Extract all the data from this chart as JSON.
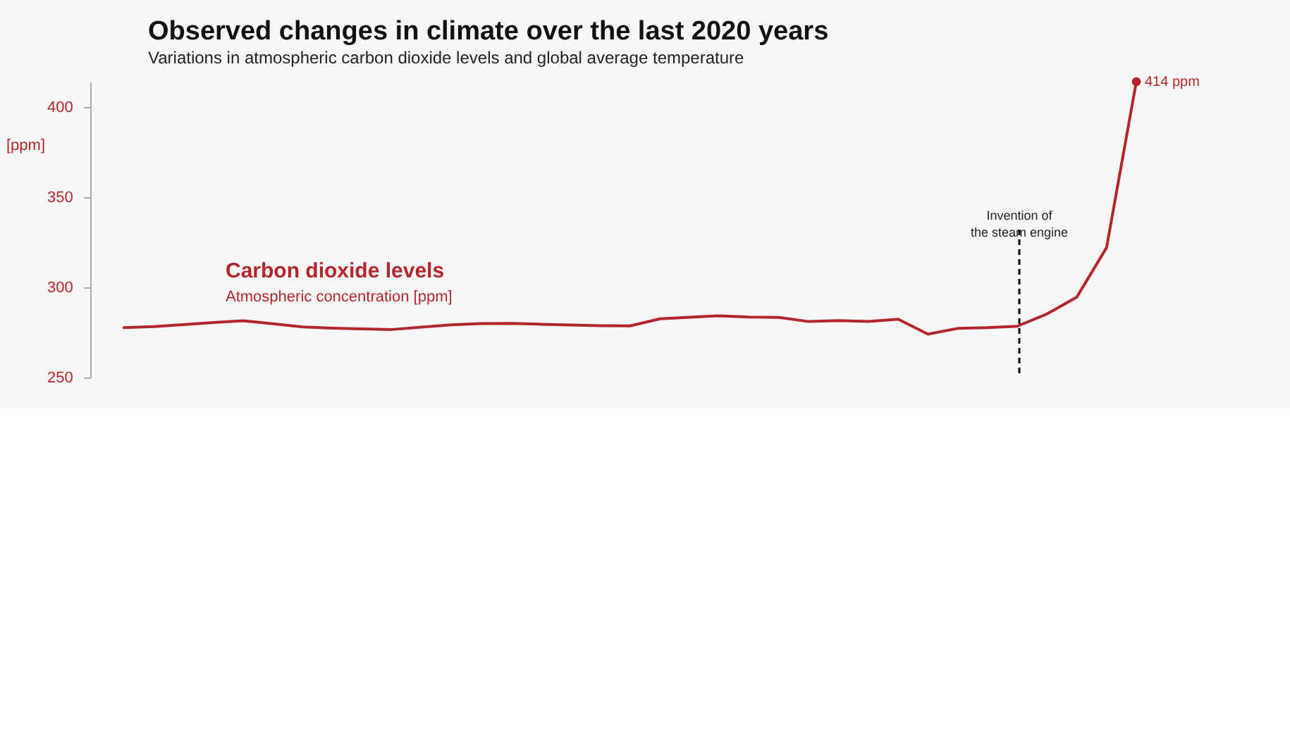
{
  "chart_data": {
    "type": "line",
    "title": "Observed changes in climate over the last 2020 years",
    "subtitle": "Variations in atmospheric carbon dioxide levels and global average temperature",
    "ylabel": "[ppm]",
    "categories": [
      null,
      null,
      null,
      null,
      null,
      null,
      null,
      null,
      null,
      null,
      null,
      null,
      null,
      null,
      null,
      null,
      null,
      null,
      null,
      null,
      null,
      null,
      null,
      null,
      null,
      null,
      null,
      null,
      null,
      null,
      null,
      null,
      null,
      null,
      null
    ],
    "series": [
      {
        "name": "Carbon dioxide levels",
        "color": "#b5262c",
        "values": [
          277.6,
          278.2,
          279.3,
          280.5,
          281.4,
          279.8,
          278,
          277.3,
          276.9,
          276.6,
          277.9,
          279.2,
          279.9,
          280,
          279.5,
          279.1,
          278.7,
          278.6,
          282.5,
          283.4,
          284.2,
          283.5,
          283.3,
          281,
          281.5,
          281,
          282.3,
          274,
          277.2,
          277.6,
          278.4,
          285.2,
          294.5,
          322,
          414
        ],
        "value_labels": [
          null,
          null,
          null,
          null,
          null,
          null,
          null,
          null,
          null,
          null,
          null,
          null,
          null,
          null,
          null,
          null,
          null,
          null,
          null,
          null,
          null,
          null,
          null,
          null,
          null,
          null,
          null,
          null,
          null,
          null,
          null,
          null,
          null,
          null,
          "414 ppm"
        ]
      }
    ],
    "ylim": [
      250,
      414
    ],
    "yticks": [
      250,
      300,
      350,
      400
    ],
    "tick_labels": "y",
    "grid": false,
    "legend": false,
    "marker": "none",
    "line_style": "solid",
    "annotations": [
      "Atmospheric concentration [ppm]",
      "Invention of the steam engine"
    ]
  }
}
